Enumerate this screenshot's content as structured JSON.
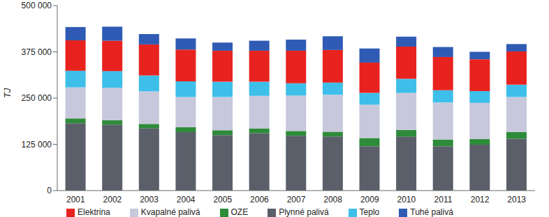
{
  "chart_data": {
    "type": "bar",
    "stacked": true,
    "grid": false,
    "legend": "bottom",
    "y_label": "TJ",
    "categories": [
      "2001",
      "2002",
      "2003",
      "2004",
      "2005",
      "2006",
      "2007",
      "2008",
      "2009",
      "2010",
      "2011",
      "2012",
      "2013"
    ],
    "ylim": [
      0,
      500000
    ],
    "yticks": [
      0,
      {
        "value": 125000,
        "label": "125 000"
      },
      {
        "value": 250000,
        "label": "250 000"
      },
      {
        "value": 375000,
        "label": "375 000"
      },
      {
        "value": 500000,
        "label": "500 000"
      }
    ],
    "series": [
      {
        "name": "Plynné palivá",
        "color": "#5a5f6a",
        "values": [
          182000,
          178000,
          168000,
          158000,
          150000,
          155000,
          148000,
          146000,
          120000,
          146000,
          120000,
          124000,
          140000
        ]
      },
      {
        "name": "OZE",
        "color": "#2e8b3a",
        "values": [
          13000,
          12000,
          12000,
          13000,
          13000,
          13000,
          13000,
          13000,
          22000,
          18000,
          18000,
          15000,
          18000
        ]
      },
      {
        "name": "Kvapalné palivá",
        "color": "#c8c8dc",
        "values": [
          84000,
          88000,
          88000,
          82000,
          90000,
          88000,
          96000,
          100000,
          90000,
          100000,
          100000,
          98000,
          95000
        ]
      },
      {
        "name": "Teplo",
        "color": "#3dbfea",
        "values": [
          45000,
          45000,
          43000,
          42000,
          41000,
          38000,
          33000,
          33000,
          32000,
          38000,
          33000,
          32000,
          33000
        ]
      },
      {
        "name": "Elektrina",
        "color": "#e8231f",
        "values": [
          82000,
          82000,
          84000,
          86000,
          84000,
          84000,
          88000,
          88000,
          82000,
          87000,
          90000,
          86000,
          90000
        ]
      },
      {
        "name": "Tuhé palivá",
        "color": "#2f5bb5",
        "values": [
          36000,
          38000,
          28000,
          30000,
          22000,
          27000,
          30000,
          37000,
          38000,
          27000,
          27000,
          20000,
          20000
        ]
      }
    ]
  }
}
